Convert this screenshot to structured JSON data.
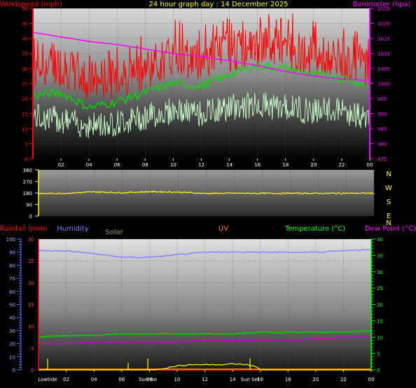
{
  "colors": {
    "windspeed": "#ff0000",
    "gust": "#ff0000",
    "average_wind": "#00dd00",
    "wind_low": "#ccffcc",
    "barometer": "#ff00ff",
    "direction": "#ffff00",
    "rain": "#ff2020",
    "humidity": "#8888ff",
    "solar": "#ffff00",
    "uv": "#ff8800",
    "temperature": "#00cc00",
    "dewpoint": "#cc00cc",
    "rain_label": "#ff0000",
    "humidity_label": "#8080ff",
    "solar_label": "#a09060",
    "uv_label": "#ff8000",
    "temperature_label": "#00ff00",
    "dewpoint_label": "#ff00ff",
    "compass": "#ffff00",
    "direction_axis": "#ffff00",
    "hour_tick": "#ffff00",
    "event_tick": "#ffff00"
  },
  "chart_data": [
    {
      "type": "line",
      "title": "24 hour graph day : 14 December 2025",
      "left_axis_title": "Windspeed (mph)",
      "right_axis_title": "Barometer (hpa)",
      "x_ticks": [
        "02",
        "04",
        "06",
        "08",
        "10",
        "12",
        "14",
        "16",
        "18",
        "20",
        "22",
        "00"
      ],
      "left_ylim": [
        0,
        50
      ],
      "left_ticks": [
        0,
        5,
        10,
        15,
        20,
        25,
        30,
        35,
        40,
        45,
        50
      ],
      "right_ylim": [
        975,
        1025
      ],
      "right_ticks": [
        975,
        980,
        985,
        990,
        995,
        1000,
        1005,
        1010,
        1015,
        1020,
        1025
      ],
      "series_hours": [
        0,
        2,
        4,
        6,
        8,
        10,
        12,
        14,
        16,
        18,
        20,
        22,
        24
      ],
      "gust_mean": [
        30,
        31,
        26,
        27,
        30,
        34,
        33,
        36,
        37,
        37,
        34,
        33,
        31
      ],
      "gust_peak": [
        43,
        38,
        36,
        38,
        42,
        47,
        45,
        47,
        48,
        49,
        47,
        44,
        41
      ],
      "average_wind": [
        21,
        22,
        17,
        19,
        22,
        25,
        24,
        28,
        31,
        30,
        28,
        27,
        24
      ],
      "wind_low": [
        14,
        13,
        11,
        12,
        14,
        16,
        15,
        17,
        18,
        17,
        16,
        16,
        13
      ],
      "barometer": [
        1017,
        1015.5,
        1014,
        1013,
        1011.5,
        1010,
        1009,
        1007.5,
        1006,
        1004,
        1002.5,
        1001.5,
        1001
      ]
    },
    {
      "type": "line",
      "x_ticks": [
        "02",
        "04",
        "06",
        "08",
        "10",
        "12",
        "14",
        "16",
        "18",
        "20",
        "22",
        "00"
      ],
      "ylim": [
        0,
        360
      ],
      "y_ticks": [
        0,
        90,
        180,
        270,
        360
      ],
      "compass_labels": [
        "N",
        "W",
        "S",
        "E",
        "N"
      ],
      "series_hours": [
        0,
        2,
        4,
        6,
        8,
        10,
        12,
        14,
        16,
        18,
        20,
        22,
        24
      ],
      "direction": [
        175,
        178,
        188,
        182,
        190,
        186,
        176,
        178,
        177,
        178,
        177,
        178,
        178
      ]
    },
    {
      "type": "line",
      "left_axis_titles": [
        "Rainfall (mm)",
        "Humidity",
        "Solar",
        "UV"
      ],
      "right_axis_titles": [
        "Temperature (°C)",
        "Dew Point (°C)"
      ],
      "x_ticks": [
        "Lowtide",
        "02",
        "04",
        "06",
        "Sunrise",
        "08",
        "10",
        "12",
        "14",
        "Sun Set",
        "16",
        "18",
        "20",
        "22",
        "00"
      ],
      "humidity_ylim": [
        0,
        100
      ],
      "humidity_ticks": [
        0,
        10,
        20,
        30,
        40,
        50,
        60,
        70,
        80,
        90,
        100
      ],
      "rain_ylim": [
        0,
        30
      ],
      "rain_ticks": [
        0,
        5,
        10,
        15,
        20,
        25,
        30
      ],
      "temp_ylim": [
        0,
        40
      ],
      "temp_ticks": [
        0,
        5,
        10,
        15,
        20,
        25,
        30,
        35,
        40
      ],
      "series_hours": [
        0,
        2,
        4,
        6,
        8,
        10,
        12,
        14,
        16,
        18,
        20,
        22,
        24
      ],
      "humidity": [
        91,
        91,
        89,
        86,
        86,
        88,
        90,
        90,
        90,
        90,
        90,
        91,
        92
      ],
      "temperature": [
        10,
        10.5,
        10.5,
        11,
        11,
        11,
        11,
        11,
        11.5,
        11.5,
        11.5,
        11.5,
        12
      ],
      "dewpoint": [
        8,
        8,
        8.5,
        8.5,
        8.5,
        8.5,
        9,
        9,
        9,
        9,
        9.5,
        10,
        10
      ],
      "rain": [
        0,
        0,
        0,
        0,
        0,
        0,
        0,
        0,
        0,
        0,
        0,
        0,
        0
      ],
      "solar_hours": [
        0,
        8.3,
        9,
        10,
        11,
        12,
        13,
        14,
        15,
        15.5,
        16.1,
        24
      ],
      "solar_pct": [
        0,
        0,
        1,
        3,
        4,
        4,
        4,
        4.5,
        4,
        3,
        0,
        0
      ]
    }
  ]
}
